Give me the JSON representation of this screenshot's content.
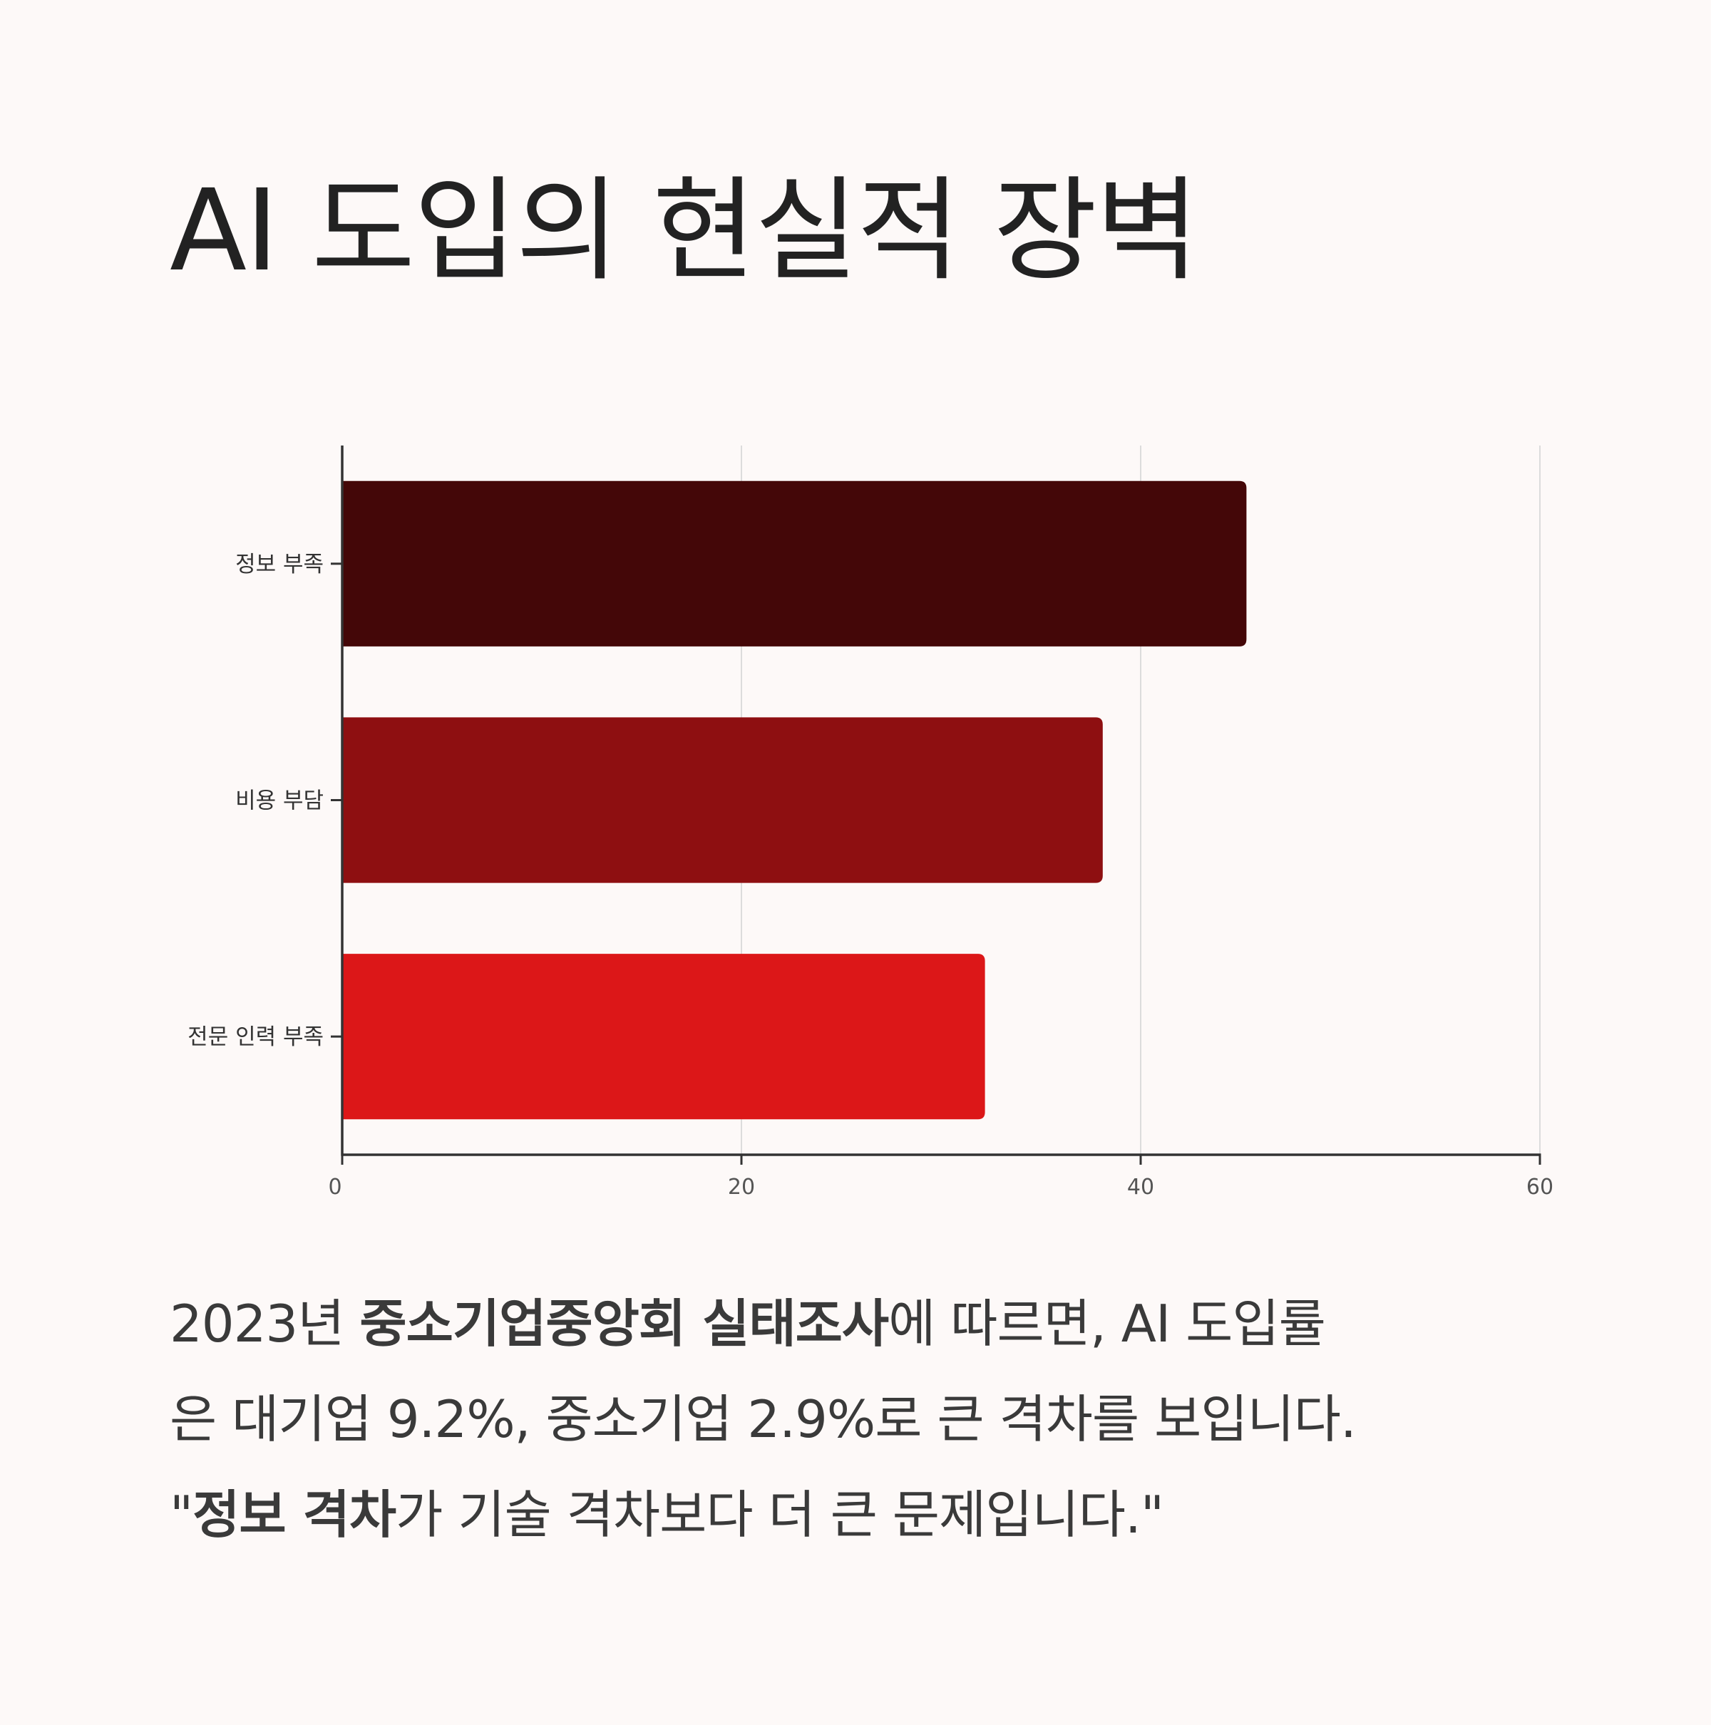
{
  "title": "AI 도입의 현실적 장벽",
  "chart_data": {
    "type": "bar",
    "orientation": "horizontal",
    "categories": [
      "정보 부족",
      "비용 부담",
      "전문 인력 부족"
    ],
    "values": [
      45.3,
      38.1,
      32.2
    ],
    "colors": [
      "#440708",
      "#8e0f11",
      "#dc1718"
    ],
    "xlim": [
      0,
      60
    ],
    "xticks": [
      "0",
      "20",
      "40",
      "60"
    ],
    "grid": "vertical",
    "legend": "none"
  },
  "caption": {
    "line1": {
      "t1": "2023년 ",
      "b1": "중소기업중앙회 실태조사",
      "t2": "에 따르면, AI 도입률"
    },
    "line2": "은 대기업 9.2%, 중소기업 2.9%로 큰 격차를 보입니다.",
    "line3": {
      "t1": "\"",
      "b1": "정보 격차",
      "t2": "가 기술 격차보다 더 큰 문제입니다.\""
    }
  }
}
